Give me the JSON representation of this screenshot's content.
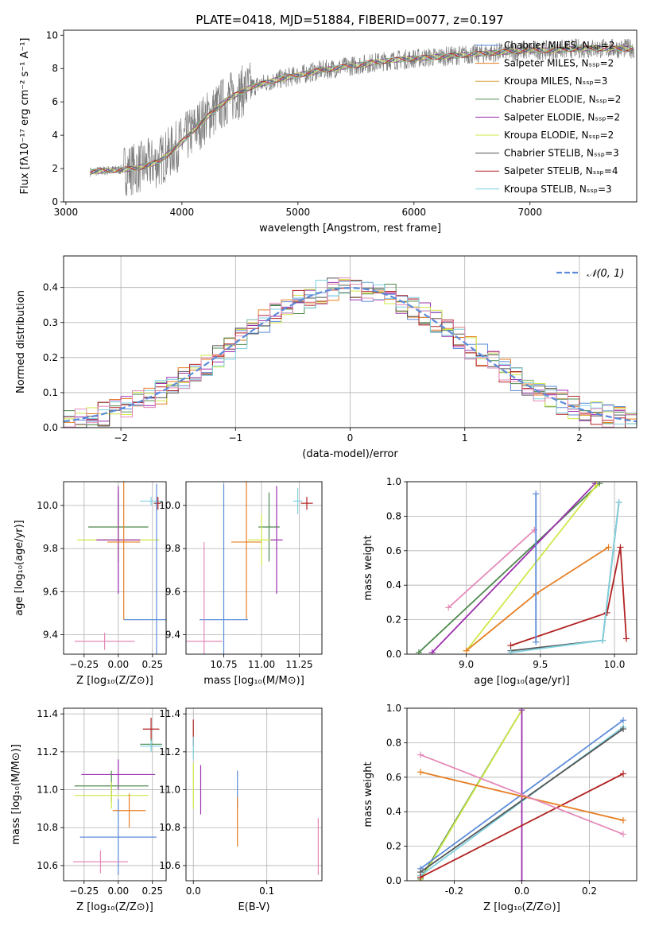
{
  "figure_title": "PLATE=0418, MJD=51884, FIBERID=0077, z=0.197",
  "colors": {
    "chabrier_miles": "#5b8bd9",
    "salpeter_miles": "#e67e22",
    "kroupa_miles": "#e67e22",
    "chabrier_elodie": "#4e8a4e",
    "salpeter_elodie": "#9b2fae",
    "kroupa_elodie": "#cfe84a",
    "chabrier_stelib": "#555555",
    "salpeter_stelib": "#b22222",
    "kroupa_stelib": "#7fd1e0",
    "pink": "#e38ab8",
    "data": "#808080"
  },
  "chart_data": [
    {
      "id": "spectrum",
      "type": "line",
      "title": "PLATE=0418, MJD=51884, FIBERID=0077, z=0.197",
      "xlabel": "wavelength [Angstrom, rest frame]",
      "ylabel": "Flux [fλ10⁻¹⁷ erg cm⁻² s⁻¹ A⁻¹]",
      "xlim": [
        2980,
        7920
      ],
      "ylim": [
        0,
        10.3
      ],
      "xticks": [
        3000,
        4000,
        5000,
        6000,
        7000
      ],
      "yticks": [
        0,
        2,
        4,
        6,
        8,
        10
      ],
      "legend_position": "top-right",
      "legend": [
        {
          "label": "Chabrier MILES, Nₛₛₚ=2",
          "color": "#5b8bd9"
        },
        {
          "label": "Salpeter MILES, Nₛₛₚ=2",
          "color": "#e67e22"
        },
        {
          "label": "Kroupa MILES, Nₛₛₚ=3",
          "color": "#d9a441"
        },
        {
          "label": "Chabrier ELODIE, Nₛₛₚ=2",
          "color": "#4e8a4e"
        },
        {
          "label": "Salpeter ELODIE, Nₛₛₚ=2",
          "color": "#9b2fae"
        },
        {
          "label": "Kroupa ELODIE, Nₛₛₚ=2",
          "color": "#cfe84a"
        },
        {
          "label": "Chabrier STELIB, Nₛₛₚ=3",
          "color": "#555555"
        },
        {
          "label": "Salpeter STELIB, Nₛₛₚ=4",
          "color": "#b22222"
        },
        {
          "label": "Kroupa STELIB, Nₛₛₚ=3",
          "color": "#7fd1e0"
        }
      ],
      "continuum": {
        "x": [
          3200,
          3400,
          3600,
          3800,
          4000,
          4200,
          4400,
          4600,
          4800,
          5000,
          5200,
          5400,
          5600,
          5800,
          6000,
          6200,
          6400,
          6600,
          6800,
          7000,
          7200,
          7400,
          7600,
          7900
        ],
        "y": [
          1.8,
          1.9,
          2.0,
          2.4,
          3.6,
          5.0,
          6.2,
          6.9,
          7.3,
          7.6,
          7.9,
          8.1,
          8.3,
          8.5,
          8.6,
          8.7,
          8.8,
          8.9,
          9.0,
          9.1,
          9.1,
          9.2,
          9.2,
          9.2
        ]
      }
    },
    {
      "id": "residuals",
      "type": "line",
      "xlabel": "(data-model)/error",
      "ylabel": "Normed distribution",
      "xlim": [
        -2.5,
        2.5
      ],
      "ylim": [
        0,
        0.49
      ],
      "xticks": [
        -2,
        -1,
        0,
        1,
        2
      ],
      "yticks": [
        0.0,
        0.1,
        0.2,
        0.3,
        0.4
      ],
      "legend": [
        "𝒩(0, 1)"
      ],
      "gaussian": {
        "mean": 0,
        "sigma": 1
      }
    },
    {
      "id": "age_vs_Z",
      "type": "scatter",
      "xlabel": "Z [log₁₀(Z/Z⊙)]",
      "ylabel": "age  [log₁₀(age/yr)]",
      "xlim": [
        -0.4,
        0.35
      ],
      "ylim": [
        9.31,
        10.11
      ],
      "xticks": [
        -0.25,
        0.0,
        0.25
      ],
      "yticks": [
        9.4,
        9.6,
        9.8,
        10.0
      ],
      "points": [
        {
          "x": 0.28,
          "y": 10.01,
          "xerr": 0.02,
          "yerr": 0.03,
          "color": "#555555"
        },
        {
          "x": 0.24,
          "y": 10.02,
          "xerr": 0.08,
          "yerr": 0.02,
          "color": "#7fd1e0"
        },
        {
          "x": 0.29,
          "y": 10.01,
          "xerr": 0.02,
          "yerr": 0.03,
          "color": "#b22222"
        },
        {
          "x": 0.0,
          "y": 9.9,
          "xerr": 0.22,
          "yerr": 0.16,
          "color": "#4e8a4e"
        },
        {
          "x": 0.0,
          "y": 9.84,
          "xerr": 0.3,
          "yerr": 0.08,
          "color": "#cfe84a"
        },
        {
          "x": 0.0,
          "y": 9.84,
          "xerr": 0.16,
          "yerr": 0.25,
          "color": "#9b2fae"
        },
        {
          "x": 0.04,
          "y": 9.83,
          "xerr": 0.12,
          "yerr": 0.36,
          "color": "#e67e22"
        },
        {
          "x": 0.28,
          "y": 9.47,
          "xerr": 0.24,
          "yerr": 0.63,
          "color": "#5b8bd9"
        },
        {
          "x": -0.1,
          "y": 9.37,
          "xerr": 0.22,
          "yerr": 0.04,
          "color": "#e38ab8"
        }
      ]
    },
    {
      "id": "age_vs_mass",
      "type": "scatter",
      "xlabel": "mass [log₁₀(M/M⊙)]",
      "xlim": [
        10.5,
        11.4
      ],
      "ylim": [
        9.31,
        10.11
      ],
      "xticks": [
        10.75,
        11.0,
        11.25
      ],
      "yticks": [
        9.4,
        9.6,
        9.8,
        10.0
      ],
      "points": [
        {
          "x": 11.3,
          "y": 10.01,
          "xerr": 0.04,
          "yerr": 0.03,
          "color": "#b22222"
        },
        {
          "x": 11.24,
          "y": 10.02,
          "xerr": 0.03,
          "yerr": 0.06,
          "color": "#7fd1e0"
        },
        {
          "x": 11.05,
          "y": 9.9,
          "xerr": 0.07,
          "yerr": 0.16,
          "color": "#4e8a4e"
        },
        {
          "x": 11.0,
          "y": 9.84,
          "xerr": 0.09,
          "yerr": 0.12,
          "color": "#cfe84a"
        },
        {
          "x": 11.1,
          "y": 9.84,
          "xerr": 0.04,
          "yerr": 0.25,
          "color": "#9b2fae"
        },
        {
          "x": 10.9,
          "y": 9.83,
          "xerr": 0.1,
          "yerr": 0.36,
          "color": "#e67e22"
        },
        {
          "x": 10.75,
          "y": 9.47,
          "xerr": 0.16,
          "yerr": 0.63,
          "color": "#5b8bd9"
        },
        {
          "x": 10.62,
          "y": 9.37,
          "xerr": 0.12,
          "yerr": 0.46,
          "color": "#e38ab8"
        }
      ]
    },
    {
      "id": "weight_vs_age",
      "type": "line",
      "xlabel": "age  [log₁₀(age/yr)]",
      "ylabel": "mass weight",
      "xlim": [
        8.6,
        10.15
      ],
      "ylim": [
        0,
        1.0
      ],
      "xticks": [
        9.0,
        9.5,
        10.0
      ],
      "yticks": [
        0.0,
        0.2,
        0.4,
        0.6,
        0.8,
        1.0
      ],
      "series": [
        {
          "color": "#4e8a4e",
          "x": [
            8.68,
            9.9
          ],
          "y": [
            0.01,
            0.99
          ]
        },
        {
          "color": "#9b2fae",
          "x": [
            8.77,
            9.87
          ],
          "y": [
            0.01,
            0.99
          ]
        },
        {
          "color": "#cfe84a",
          "x": [
            9.0,
            9.88
          ],
          "y": [
            0.02,
            0.98
          ]
        },
        {
          "color": "#e67e22",
          "x": [
            9.0,
            9.47,
            9.96
          ],
          "y": [
            0.02,
            0.35,
            0.62
          ]
        },
        {
          "color": "#e38ab8",
          "x": [
            8.88,
            9.46
          ],
          "y": [
            0.27,
            0.72
          ]
        },
        {
          "color": "#b22222",
          "x": [
            9.3,
            9.95,
            10.04,
            10.08
          ],
          "y": [
            0.05,
            0.24,
            0.62,
            0.09
          ]
        },
        {
          "color": "#555555",
          "x": [
            9.3,
            9.92,
            10.03
          ],
          "y": [
            0.02,
            0.08,
            0.88
          ]
        },
        {
          "color": "#7fd1e0",
          "x": [
            9.3,
            9.92,
            10.03
          ],
          "y": [
            0.01,
            0.08,
            0.88
          ]
        },
        {
          "color": "#5b8bd9",
          "x": [
            9.47,
            9.47
          ],
          "y": [
            0.07,
            0.93
          ]
        }
      ]
    },
    {
      "id": "mass_vs_Z",
      "type": "scatter",
      "xlabel": "Z [log₁₀(Z/Z⊙)]",
      "ylabel": "mass [log₁₀(M/M⊙)]",
      "xlim": [
        -0.4,
        0.35
      ],
      "ylim": [
        10.52,
        11.43
      ],
      "xticks": [
        -0.25,
        0.0,
        0.25
      ],
      "yticks": [
        10.6,
        10.8,
        11.0,
        11.2,
        11.4
      ],
      "points": [
        {
          "x": 0.24,
          "y": 11.32,
          "xerr": 0.06,
          "yerr": 0.06,
          "color": "#b22222"
        },
        {
          "x": 0.24,
          "y": 11.24,
          "xerr": 0.08,
          "yerr": 0.03,
          "color": "#4e8a4e"
        },
        {
          "x": 0.24,
          "y": 11.23,
          "xerr": 0.08,
          "yerr": 0.03,
          "color": "#7fd1e0"
        },
        {
          "x": 0.0,
          "y": 11.08,
          "xerr": 0.27,
          "yerr": 0.08,
          "color": "#9b2fae"
        },
        {
          "x": -0.05,
          "y": 11.02,
          "xerr": 0.27,
          "yerr": 0.08,
          "color": "#4e8a4e"
        },
        {
          "x": -0.05,
          "y": 10.97,
          "xerr": 0.27,
          "yerr": 0.07,
          "color": "#cfe84a"
        },
        {
          "x": 0.08,
          "y": 10.89,
          "xerr": 0.12,
          "yerr": 0.09,
          "color": "#e67e22"
        },
        {
          "x": 0.0,
          "y": 10.75,
          "xerr": 0.28,
          "yerr": 0.2,
          "color": "#5b8bd9"
        },
        {
          "x": -0.13,
          "y": 10.62,
          "xerr": 0.2,
          "yerr": 0.06,
          "color": "#e38ab8"
        }
      ]
    },
    {
      "id": "mass_vs_EBV",
      "type": "scatter",
      "xlabel": "E(B-V)",
      "xlim": [
        -0.01,
        0.175
      ],
      "ylim": [
        10.52,
        11.43
      ],
      "xticks": [
        0.0,
        0.1
      ],
      "yticks": [
        10.6,
        10.8,
        11.0,
        11.2,
        11.4
      ],
      "points": [
        {
          "x": 0.0,
          "y": 11.3,
          "yerr": 0.07,
          "color": "#b22222"
        },
        {
          "x": 0.0,
          "y": 11.22,
          "yerr": 0.06,
          "color": "#7fd1e0"
        },
        {
          "x": 0.0,
          "y": 11.02,
          "yerr": 0.12,
          "color": "#cfe84a"
        },
        {
          "x": 0.01,
          "y": 11.0,
          "yerr": 0.13,
          "color": "#9b2fae"
        },
        {
          "x": 0.06,
          "y": 11.0,
          "yerr": 0.1,
          "color": "#5b8bd9"
        },
        {
          "x": 0.06,
          "y": 10.83,
          "yerr": 0.13,
          "color": "#e67e22"
        },
        {
          "x": 0.17,
          "y": 10.7,
          "yerr": 0.15,
          "color": "#e38ab8"
        }
      ]
    },
    {
      "id": "weight_vs_Z",
      "type": "line",
      "xlabel": "Z [log₁₀(Z/Z⊙)]",
      "ylabel": "mass weight",
      "xlim": [
        -0.34,
        0.34
      ],
      "ylim": [
        0,
        1.0
      ],
      "xticks": [
        -0.2,
        0.0,
        0.2
      ],
      "yticks": [
        0.0,
        0.2,
        0.4,
        0.6,
        0.8,
        1.0
      ],
      "series": [
        {
          "color": "#4e8a4e",
          "x": [
            -0.3,
            0.0
          ],
          "y": [
            0.01,
            0.99
          ]
        },
        {
          "color": "#cfe84a",
          "x": [
            -0.3,
            0.0
          ],
          "y": [
            0.0,
            0.99
          ]
        },
        {
          "color": "#9b2fae",
          "x": [
            0.0,
            0.0
          ],
          "y": [
            0.0,
            0.99
          ]
        },
        {
          "color": "#5b8bd9",
          "x": [
            -0.3,
            0.3
          ],
          "y": [
            0.07,
            0.93
          ]
        },
        {
          "color": "#7fd1e0",
          "x": [
            -0.3,
            0.3
          ],
          "y": [
            0.03,
            0.89
          ]
        },
        {
          "color": "#555555",
          "x": [
            -0.3,
            0.3
          ],
          "y": [
            0.05,
            0.88
          ]
        },
        {
          "color": "#b22222",
          "x": [
            -0.3,
            0.3
          ],
          "y": [
            0.02,
            0.62
          ]
        },
        {
          "color": "#e67e22",
          "x": [
            -0.3,
            0.3
          ],
          "y": [
            0.63,
            0.35
          ]
        },
        {
          "color": "#e38ab8",
          "x": [
            -0.3,
            0.3
          ],
          "y": [
            0.73,
            0.27
          ]
        }
      ]
    }
  ]
}
